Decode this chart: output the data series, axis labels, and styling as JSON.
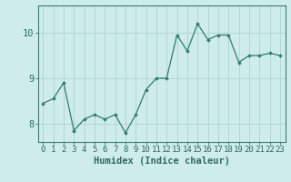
{
  "xlabel": "Humidex (Indice chaleur)",
  "ylabel": "",
  "x_values": [
    0,
    1,
    2,
    3,
    4,
    5,
    6,
    7,
    8,
    9,
    10,
    11,
    12,
    13,
    14,
    15,
    16,
    17,
    18,
    19,
    20,
    21,
    22,
    23
  ],
  "y_values": [
    8.45,
    8.55,
    8.9,
    7.85,
    8.1,
    8.2,
    8.1,
    8.2,
    7.8,
    8.2,
    8.75,
    9.0,
    9.0,
    9.95,
    9.6,
    10.2,
    9.85,
    9.95,
    9.95,
    9.35,
    9.5,
    9.5,
    9.55,
    9.5
  ],
  "line_color": "#2e7d6e",
  "marker": "D",
  "marker_size": 1.8,
  "bg_color": "#ceecea",
  "grid_color": "#aed4d0",
  "axis_color": "#3a7d72",
  "tick_color": "#2e6b62",
  "label_color": "#2e6b62",
  "ylim": [
    7.6,
    10.6
  ],
  "yticks": [
    8,
    9,
    10
  ],
  "xticks": [
    0,
    1,
    2,
    3,
    4,
    5,
    6,
    7,
    8,
    9,
    10,
    11,
    12,
    13,
    14,
    15,
    16,
    17,
    18,
    19,
    20,
    21,
    22,
    23
  ],
  "xlabel_fontsize": 7.5,
  "tick_fontsize": 6.5,
  "ytick_fontsize": 7.5
}
